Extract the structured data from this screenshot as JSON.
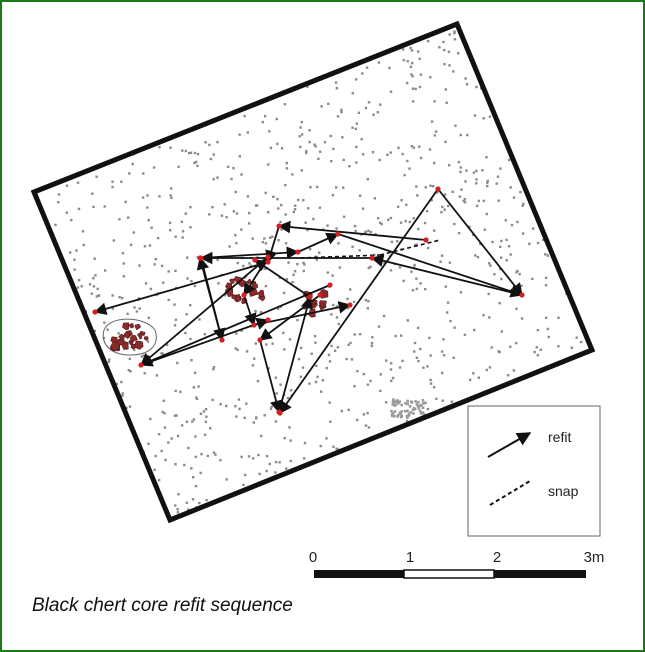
{
  "figure": {
    "caption": "Black chert core refit sequence",
    "colors": {
      "frame": "#1a7a1a",
      "points": "#8a8a8a",
      "refit_ends": "#d22020",
      "flakes": "#8b2a2a",
      "lines": "#111111"
    }
  },
  "legend": {
    "refit_label": "refit",
    "snap_label": "snap"
  },
  "scale_bar": {
    "ticks": [
      "0",
      "1",
      "2",
      "3m"
    ]
  }
}
